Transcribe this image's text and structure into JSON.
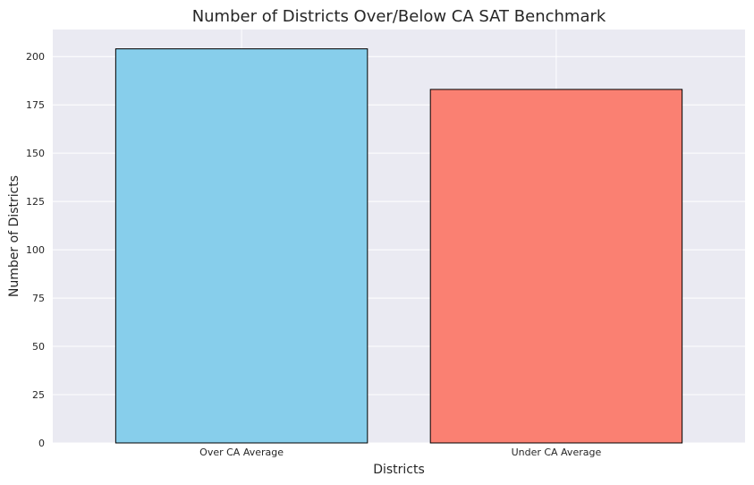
{
  "chart_data": {
    "type": "bar",
    "title": "Number of Districts Over/Below CA SAT Benchmark",
    "xlabel": "Districts",
    "ylabel": "Number of Districts",
    "categories": [
      "Over CA Average",
      "Under CA Average"
    ],
    "values": [
      204,
      183
    ],
    "colors": [
      "#87CEEB",
      "#FA8072"
    ],
    "edge_color": "#000000",
    "plot_background": "#EAEAF2",
    "grid": true,
    "ylim": [
      0,
      214
    ],
    "yticks": [
      "0",
      "25",
      "50",
      "75",
      "100",
      "125",
      "150",
      "175",
      "200"
    ]
  }
}
